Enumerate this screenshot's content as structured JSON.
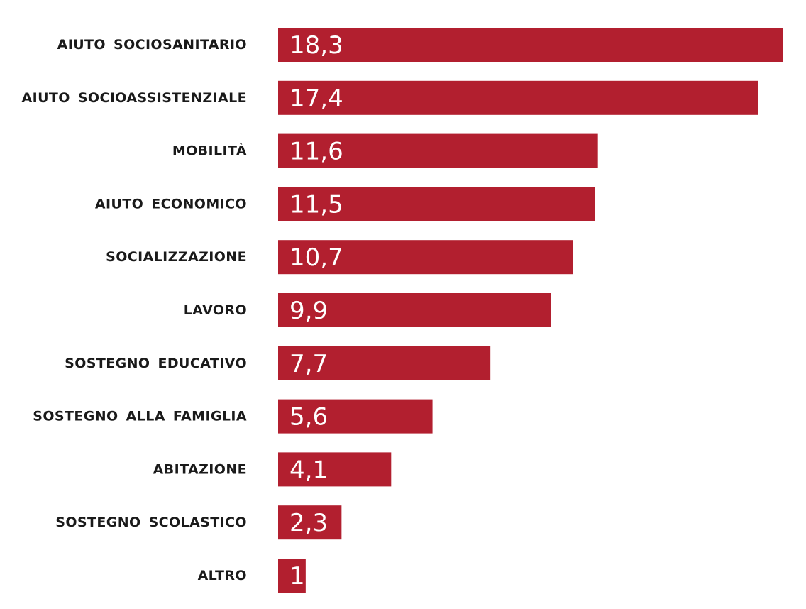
{
  "chart_data": {
    "type": "bar",
    "orientation": "horizontal",
    "categories": [
      "AIUTO SOCIOSANITARIO",
      "AIUTO SOCIOASSISTENZIALE",
      "MOBILITÀ",
      "AIUTO ECONOMICO",
      "SOCIALIZZAZIONE",
      "LAVORO",
      "SOSTEGNO EDUCATIVO",
      "SOSTEGNO ALLA FAMIGLIA",
      "ABITAZIONE",
      "SOSTEGNO SCOLASTICO",
      "ALTRO"
    ],
    "values": [
      18.3,
      17.4,
      11.6,
      11.5,
      10.7,
      9.9,
      7.7,
      5.6,
      4.1,
      2.3,
      1
    ],
    "value_labels": [
      "18,3",
      "17,4",
      "11,6",
      "11,5",
      "10,7",
      "9,9",
      "7,7",
      "5,6",
      "4,1",
      "2,3",
      "1"
    ],
    "bar_color": "#b21f2f",
    "value_label_color": "#ffffff",
    "category_label_color": "#1a1a1a",
    "xlim": [
      0,
      18.3
    ],
    "title": "",
    "xlabel": "",
    "ylabel": "",
    "grid": false,
    "legend": "none"
  }
}
